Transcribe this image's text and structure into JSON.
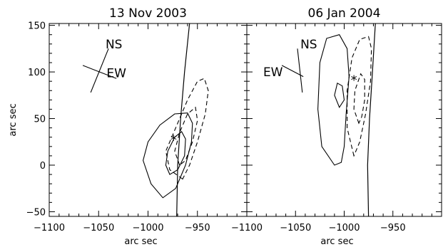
{
  "chart_data": [
    {
      "type": "contour",
      "title": "13 Nov 2003",
      "xlabel": "arc sec",
      "ylabel": "arc sec",
      "xlim": [
        -1100,
        -900
      ],
      "ylim": [
        -55,
        152
      ],
      "x_ticks": [
        -1100,
        -1050,
        -1000,
        -950
      ],
      "x_tick_labels": [
        "−1100",
        "−1050",
        "−1000",
        "−950"
      ],
      "y_ticks": [
        -50,
        0,
        50,
        100,
        150
      ],
      "y_tick_labels": [
        "−50",
        "0",
        "50",
        "100",
        "150"
      ],
      "annotations": [
        "NS",
        "EW"
      ],
      "marker": {
        "symbol": "*",
        "x": -974,
        "y": 28
      },
      "limb": [
        [
          -971,
          -55
        ],
        [
          -970,
          0
        ],
        [
          -967,
          50
        ],
        [
          -963,
          100
        ],
        [
          -958,
          152
        ]
      ],
      "contours": [
        {
          "style": "solid",
          "points": [
            [
              -985,
              -35
            ],
            [
              -997,
              -20
            ],
            [
              -1005,
              5
            ],
            [
              -1000,
              25
            ],
            [
              -988,
              43
            ],
            [
              -973,
              55
            ],
            [
              -960,
              56
            ],
            [
              -955,
              45
            ],
            [
              -956,
              25
            ],
            [
              -962,
              0
            ],
            [
              -972,
              -25
            ],
            [
              -985,
              -35
            ]
          ]
        },
        {
          "style": "solid",
          "points": [
            [
              -978,
              -10
            ],
            [
              -982,
              0
            ],
            [
              -980,
              15
            ],
            [
              -973,
              30
            ],
            [
              -966,
              36
            ],
            [
              -962,
              28
            ],
            [
              -963,
              10
            ],
            [
              -970,
              -5
            ],
            [
              -978,
              -10
            ]
          ]
        },
        {
          "style": "dashed",
          "points": [
            [
              -965,
              -15
            ],
            [
              -978,
              -5
            ],
            [
              -982,
              15
            ],
            [
              -972,
              40
            ],
            [
              -960,
              70
            ],
            [
              -950,
              90
            ],
            [
              -943,
              93
            ],
            [
              -939,
              80
            ],
            [
              -942,
              55
            ],
            [
              -950,
              25
            ],
            [
              -958,
              0
            ],
            [
              -965,
              -15
            ]
          ]
        },
        {
          "style": "dashed",
          "points": [
            [
              -968,
              0
            ],
            [
              -973,
              15
            ],
            [
              -968,
              35
            ],
            [
              -960,
              55
            ],
            [
              -952,
              62
            ],
            [
              -950,
              48
            ],
            [
              -955,
              25
            ],
            [
              -962,
              5
            ],
            [
              -968,
              0
            ]
          ]
        }
      ],
      "orientation": {
        "NS": [
          [
            -1058,
            78
          ],
          [
            -1040,
            125
          ]
        ],
        "EW": [
          [
            -1066,
            107
          ],
          [
            -1032,
            93
          ]
        ]
      }
    },
    {
      "type": "contour",
      "title": "06 Jan 2004",
      "xlabel": "arc sec",
      "ylabel": "",
      "xlim": [
        -1100,
        -900
      ],
      "ylim": [
        -55,
        152
      ],
      "x_ticks": [
        -1100,
        -1050,
        -1000,
        -950
      ],
      "x_tick_labels": [
        "−1100",
        "−1050",
        "−1000",
        "−950"
      ],
      "y_ticks": [
        -50,
        0,
        50,
        100,
        150
      ],
      "y_tick_labels": [],
      "annotations": [
        "NS",
        "EW"
      ],
      "marker": {
        "symbol": "*",
        "x": -990,
        "y": 92
      },
      "limb": [
        [
          -975,
          -55
        ],
        [
          -976,
          0
        ],
        [
          -974,
          50
        ],
        [
          -971,
          100
        ],
        [
          -968,
          152
        ]
      ],
      "contours": [
        {
          "style": "solid",
          "points": [
            [
              -1010,
              0
            ],
            [
              -1023,
              20
            ],
            [
              -1027,
              60
            ],
            [
              -1025,
              110
            ],
            [
              -1018,
              136
            ],
            [
              -1005,
              140
            ],
            [
              -997,
              125
            ],
            [
              -995,
              95
            ],
            [
              -998,
              55
            ],
            [
              -1000,
              20
            ],
            [
              -1003,
              3
            ],
            [
              -1010,
              0
            ]
          ]
        },
        {
          "style": "solid",
          "points": [
            [
              -1005,
              62
            ],
            [
              -1010,
              75
            ],
            [
              -1007,
              88
            ],
            [
              -1002,
              85
            ],
            [
              -1000,
              70
            ],
            [
              -1005,
              62
            ]
          ]
        },
        {
          "style": "dashed",
          "points": [
            [
              -990,
              10
            ],
            [
              -997,
              40
            ],
            [
              -997,
              80
            ],
            [
              -992,
              115
            ],
            [
              -984,
              135
            ],
            [
              -975,
              138
            ],
            [
              -972,
              125
            ],
            [
              -973,
              90
            ],
            [
              -978,
              55
            ],
            [
              -984,
              25
            ],
            [
              -990,
              10
            ]
          ]
        },
        {
          "style": "dashed",
          "points": [
            [
              -985,
              45
            ],
            [
              -990,
              60
            ],
            [
              -989,
              80
            ],
            [
              -983,
              98
            ],
            [
              -979,
              92
            ],
            [
              -979,
              70
            ],
            [
              -982,
              52
            ],
            [
              -985,
              45
            ]
          ]
        }
      ],
      "orientation": {
        "NS": [
          [
            -1043,
            78
          ],
          [
            -1048,
            125
          ]
        ],
        "EW": [
          [
            -1064,
            107
          ],
          [
            -1042,
            95
          ]
        ]
      }
    }
  ],
  "colors": {
    "foreground": "#000000",
    "background": "#ffffff"
  }
}
